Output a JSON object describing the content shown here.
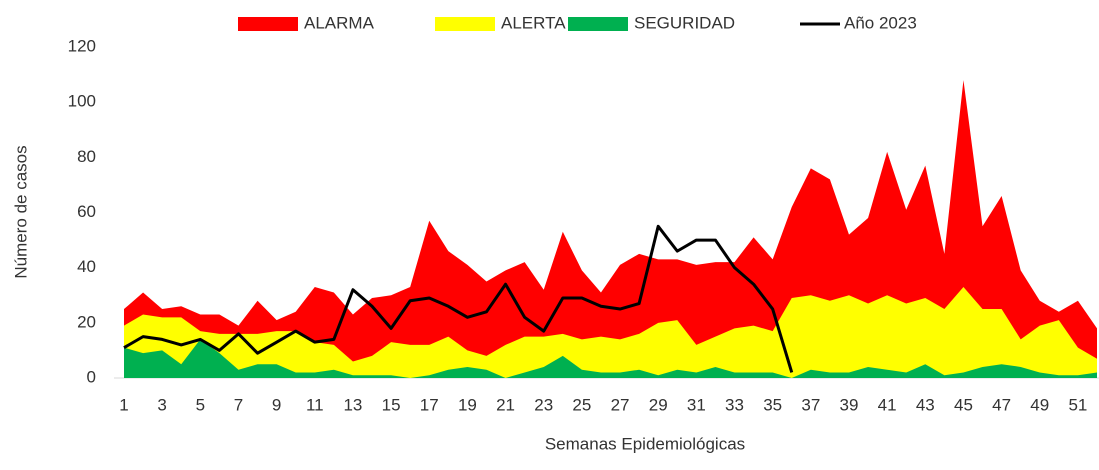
{
  "chart_data": {
    "type": "area",
    "x_label": "Semanas Epidemiológicas",
    "y_label": "Número de casos",
    "categories": [
      "1",
      null,
      "3",
      null,
      "5",
      null,
      "7",
      null,
      "9",
      null,
      "11",
      null,
      "13",
      null,
      "15",
      null,
      "17",
      null,
      "19",
      null,
      "21",
      null,
      "23",
      null,
      "25",
      null,
      "27",
      null,
      "29",
      null,
      "31",
      null,
      "33",
      null,
      "35",
      null,
      "37",
      null,
      "39",
      null,
      "41",
      null,
      "43",
      null,
      "45",
      null,
      "47",
      null,
      "49",
      null,
      "51",
      null
    ],
    "ylim": [
      0,
      120
    ],
    "yticks": [
      0,
      20,
      40,
      60,
      80,
      100,
      120
    ],
    "grid": false,
    "legend": "top",
    "series": [
      {
        "name": "ALARMA",
        "color": "#ff0000",
        "values": [
          25,
          31,
          25,
          26,
          23,
          23,
          19,
          28,
          21,
          24,
          33,
          31,
          23,
          29,
          30,
          33,
          57,
          46,
          41,
          35,
          39,
          42,
          32,
          53,
          39,
          31,
          41,
          45,
          43,
          43,
          41,
          42,
          42,
          51,
          43,
          62,
          76,
          72,
          52,
          58,
          82,
          61,
          77,
          45,
          108,
          55,
          66,
          39,
          28,
          24,
          28,
          18
        ]
      },
      {
        "name": "ALERTA",
        "color": "#ffff00",
        "values": [
          19,
          23,
          22,
          22,
          17,
          16,
          16,
          16,
          17,
          17,
          13,
          12,
          6,
          8,
          13,
          12,
          12,
          15,
          10,
          8,
          12,
          15,
          15,
          16,
          14,
          15,
          14,
          16,
          20,
          21,
          12,
          15,
          18,
          19,
          17,
          29,
          30,
          28,
          30,
          27,
          30,
          27,
          29,
          25,
          33,
          25,
          25,
          14,
          19,
          21,
          11,
          7
        ]
      },
      {
        "name": "SEGURIDAD",
        "color": "#00b050",
        "values": [
          11,
          9,
          10,
          5,
          14,
          9,
          3,
          5,
          5,
          2,
          2,
          3,
          1,
          1,
          1,
          0,
          1,
          3,
          4,
          3,
          0,
          2,
          4,
          8,
          3,
          2,
          2,
          3,
          1,
          3,
          2,
          4,
          2,
          2,
          2,
          0,
          3,
          2,
          2,
          4,
          3,
          2,
          5,
          1,
          2,
          4,
          5,
          4,
          2,
          1,
          1,
          2
        ]
      },
      {
        "name": "Año 2023",
        "color": "#000000",
        "type": "line",
        "values": [
          11,
          15,
          14,
          12,
          14,
          10,
          16,
          9,
          13,
          17,
          13,
          14,
          32,
          26,
          18,
          28,
          29,
          26,
          22,
          24,
          34,
          22,
          17,
          29,
          29,
          26,
          25,
          27,
          55,
          46,
          50,
          50,
          40,
          34,
          25,
          2,
          null,
          null,
          null,
          null,
          null,
          null,
          null,
          null,
          null,
          null,
          null,
          null,
          null,
          null,
          null,
          null
        ]
      }
    ]
  }
}
